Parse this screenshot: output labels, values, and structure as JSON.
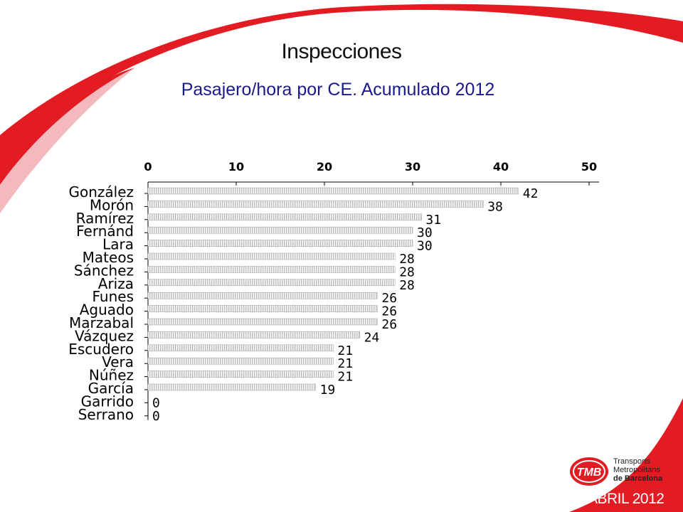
{
  "slide": {
    "title": "Inspecciones",
    "subtitle": "Pasajero/hora por CE. Acumulado 2012",
    "footer_date": "ABRIL 2012"
  },
  "logo": {
    "mark": "TMB",
    "line1": "Transports",
    "line2": "Metropolitans",
    "line3": "de Barcelona"
  },
  "colors": {
    "accent_red": "#e31b23",
    "title_blue": "#1a1a8c",
    "bar_fill": "#d8d8d8"
  },
  "chart_data": {
    "type": "bar",
    "orientation": "horizontal",
    "categories": [
      "González",
      "Morón",
      "Ramírez",
      "Fernánd",
      "Lara",
      "Mateos",
      "Sánchez",
      "Ariza",
      "Funes",
      "Aguado",
      "Marzabal",
      "Vázquez",
      "Escudero",
      "Vera",
      "Núñez",
      "García",
      "Garrido",
      "Serrano"
    ],
    "values": [
      42,
      38,
      31,
      30,
      30,
      28,
      28,
      28,
      26,
      26,
      26,
      24,
      21,
      21,
      21,
      19,
      0,
      0
    ],
    "xlim": [
      0,
      50
    ],
    "xticks": [
      0,
      10,
      20,
      30,
      40,
      50
    ],
    "axis_position": "top",
    "grid": false,
    "legend": "none"
  }
}
